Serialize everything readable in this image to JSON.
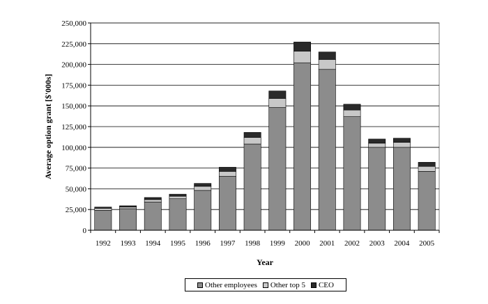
{
  "chart_data": {
    "type": "bar",
    "stacked": true,
    "title": "",
    "xlabel": "Year",
    "ylabel": "Average option grant [$'000s]",
    "ylim": [
      0,
      250000
    ],
    "ytick_step": 25000,
    "yticks": [
      "0",
      "25,000",
      "50,000",
      "75,000",
      "100,000",
      "125,000",
      "150,000",
      "175,000",
      "200,000",
      "225,000",
      "250,000"
    ],
    "grid": true,
    "legend_position": "bottom",
    "categories": [
      "1992",
      "1993",
      "1994",
      "1995",
      "1996",
      "1997",
      "1998",
      "1999",
      "2000",
      "2001",
      "2002",
      "2003",
      "2004",
      "2005"
    ],
    "series": [
      {
        "name": "Other employees",
        "color": "#8c8c8c",
        "values": [
          24000,
          26000,
          34000,
          38000,
          48000,
          65000,
          104000,
          148000,
          202000,
          194000,
          137000,
          100000,
          100000,
          71000
        ]
      },
      {
        "name": "Other top 5",
        "color": "#c8c8c8",
        "values": [
          2500,
          2000,
          3000,
          3000,
          5000,
          6000,
          8000,
          11000,
          14000,
          12000,
          8000,
          5000,
          6000,
          6000
        ]
      },
      {
        "name": "CEO",
        "color": "#2a2a2a",
        "values": [
          1500,
          1500,
          2500,
          2500,
          3500,
          5000,
          6000,
          9000,
          11000,
          9000,
          7000,
          5000,
          5000,
          5000
        ]
      }
    ]
  }
}
